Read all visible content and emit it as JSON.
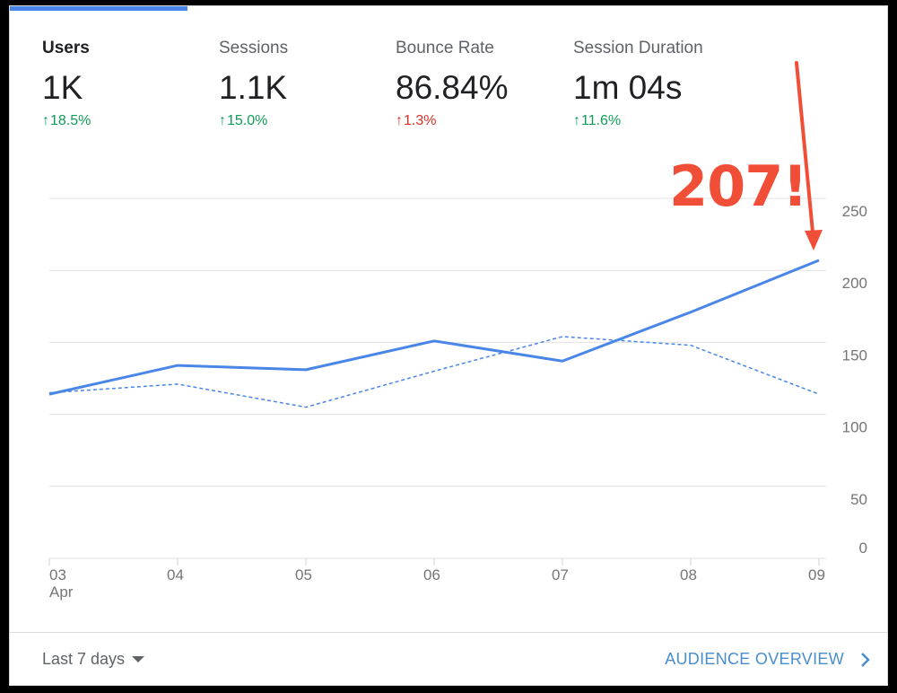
{
  "colors": {
    "accent": "#4a86e8",
    "up_good": "#0f9d58",
    "up_bad": "#d93025",
    "annotation": "#f04e37",
    "link": "#4a8dcf"
  },
  "metrics": [
    {
      "label": "Users",
      "value": "1K",
      "change": "18.5%",
      "status": "good",
      "icon": "arrow-up-icon"
    },
    {
      "label": "Sessions",
      "value": "1.1K",
      "change": "15.0%",
      "status": "good",
      "icon": "arrow-up-icon"
    },
    {
      "label": "Bounce Rate",
      "value": "86.84%",
      "change": "1.3%",
      "status": "bad",
      "icon": "arrow-up-icon"
    },
    {
      "label": "Session Duration",
      "value": "1m 04s",
      "change": "11.6%",
      "status": "good",
      "icon": "arrow-up-icon"
    }
  ],
  "annotation": {
    "text": "207!"
  },
  "footer": {
    "range_label": "Last 7 days",
    "overview_label": "AUDIENCE OVERVIEW"
  },
  "chart_data": {
    "type": "line",
    "categories": [
      "03",
      "04",
      "05",
      "06",
      "07",
      "08",
      "09"
    ],
    "category_sublabel": "Apr",
    "y_ticks": [
      "250",
      "200",
      "150",
      "100",
      "50",
      "0"
    ],
    "ylim": [
      0,
      250
    ],
    "series": [
      {
        "name": "current",
        "style": "solid",
        "values": [
          114,
          134,
          131,
          151,
          137,
          171,
          207
        ]
      },
      {
        "name": "previous",
        "style": "dashed",
        "values": [
          115,
          121,
          105,
          130,
          154,
          148,
          114
        ]
      }
    ]
  }
}
